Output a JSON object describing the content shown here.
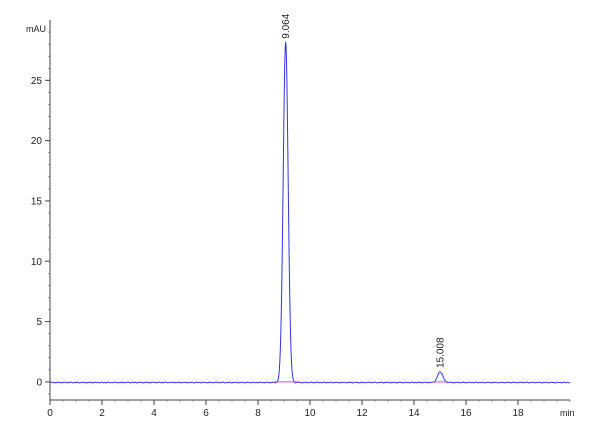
{
  "chart_data": {
    "type": "line",
    "ylabel": "mAU",
    "xlabel": "min",
    "xlim": [
      0,
      20
    ],
    "ylim": [
      -1.5,
      30
    ],
    "x_ticks": [
      0,
      2,
      4,
      6,
      8,
      10,
      12,
      14,
      16,
      18
    ],
    "y_ticks": [
      0,
      5,
      10,
      15,
      20,
      25
    ],
    "grid": false,
    "series": [
      {
        "color": "#3333dd",
        "peaks": [
          {
            "rt": 9.064,
            "height": 28.2,
            "sigma": 0.095
          },
          {
            "rt": 15.008,
            "height": 0.9,
            "sigma": 0.1
          }
        ],
        "baseline": -0.05
      },
      {
        "color": "#dd44dd",
        "segments": [
          [
            8.6,
            9.6
          ],
          [
            14.7,
            15.3
          ]
        ],
        "value": 0
      }
    ],
    "annotations": [
      {
        "text": "9.064",
        "x": 9.064,
        "y": 28.2
      },
      {
        "text": "15.008",
        "x": 15.008,
        "y": 0.9
      }
    ]
  }
}
